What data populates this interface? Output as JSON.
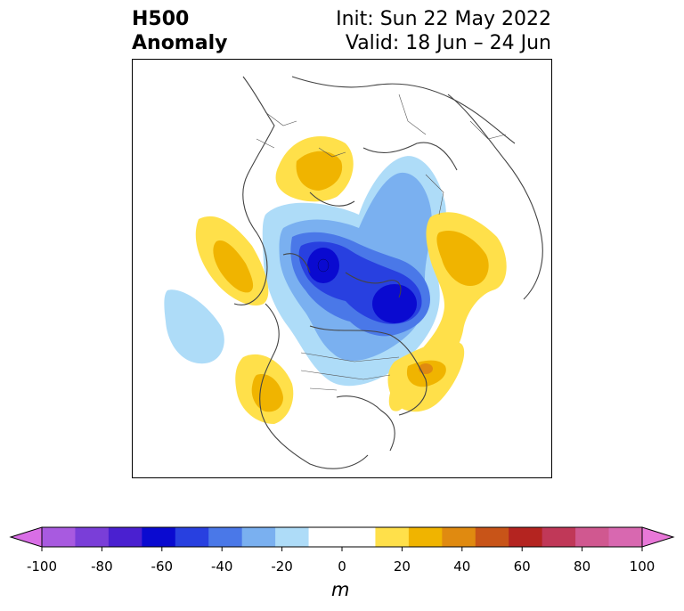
{
  "header": {
    "title_line1": "H500",
    "title_line2": "Anomaly",
    "init": "Init: Sun 22 May 2022",
    "valid": "Valid: 18 Jun – 24 Jun"
  },
  "colorbar": {
    "unit": "m",
    "ticks": [
      "-100",
      "-80",
      "-60",
      "-40",
      "-20",
      "0",
      "20",
      "40",
      "60",
      "80",
      "100"
    ],
    "extend_min_color": "#d96ee6",
    "extend_max_color": "#e878d8",
    "colors": [
      "#a85ae0",
      "#7a3ed8",
      "#4a20d0",
      "#0a0ad0",
      "#2840e0",
      "#4a78e8",
      "#7ab0f0",
      "#aedcf8",
      "#ffffff",
      "#ffffff",
      "#ffe04a",
      "#f0b400",
      "#e08a10",
      "#c85418",
      "#b42420",
      "#c03858",
      "#d05890",
      "#d868b0"
    ]
  },
  "colors": {
    "blue_light": "#aedcf8",
    "blue_mid": "#7ab0f0",
    "blue_strong": "#4a78e8",
    "blue_deep": "#2840e0",
    "blue_core": "#0a0ad0",
    "yellow": "#ffe04a",
    "gold": "#f0b400",
    "orange": "#e08a10",
    "coast": "#444444"
  }
}
